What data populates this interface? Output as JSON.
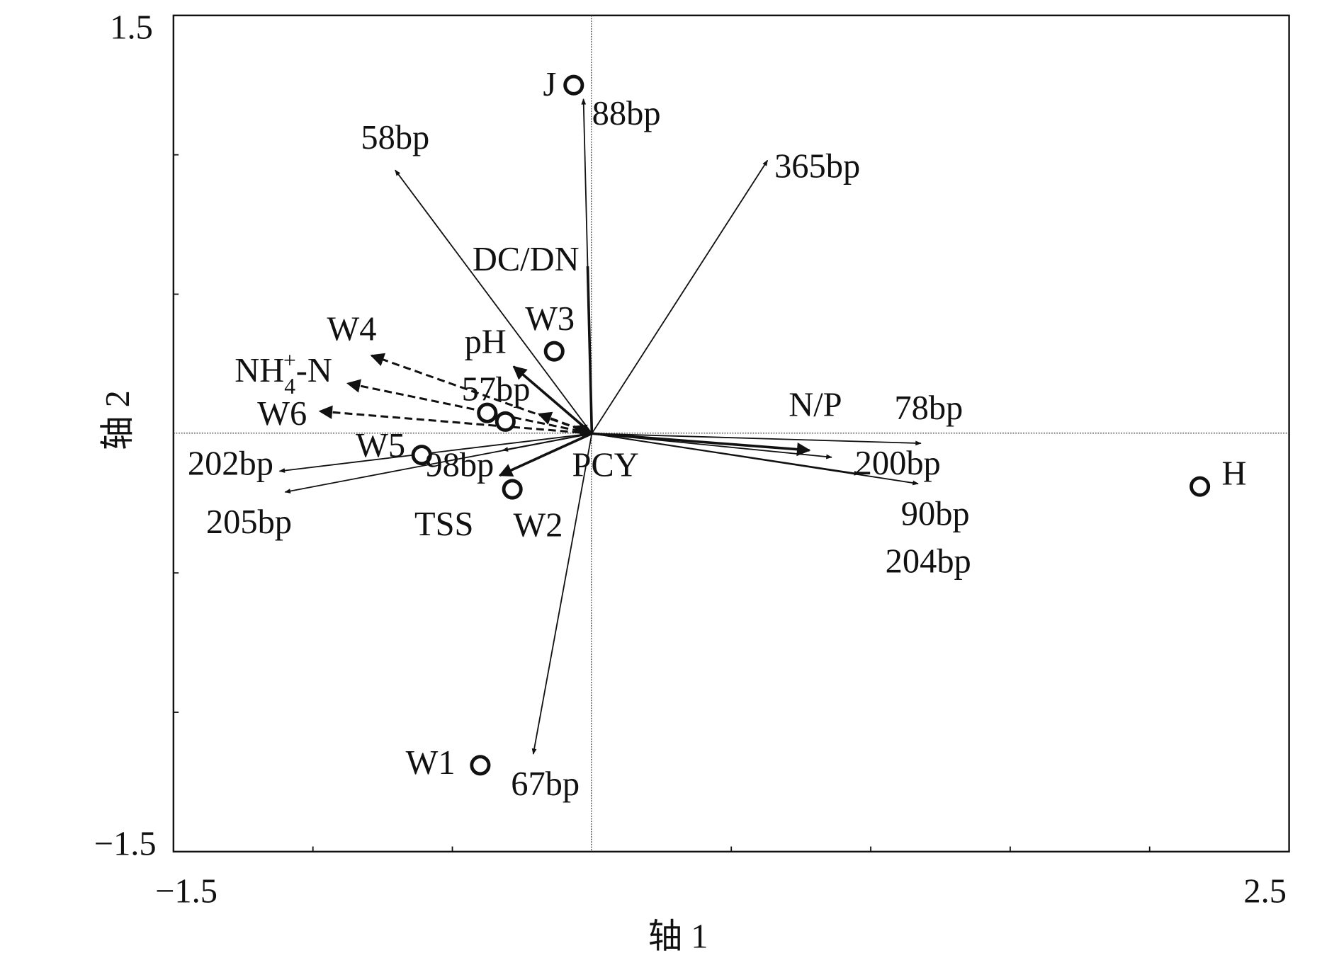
{
  "chart_data": {
    "type": "scatter",
    "title": "",
    "xlabel": "轴 1",
    "ylabel": "轴 2",
    "xlim": [
      -1.5,
      2.5
    ],
    "ylim": [
      -1.5,
      1.5
    ],
    "x_tick_labels": [
      "−1.5",
      "2.5"
    ],
    "y_tick_labels": [
      "1.5",
      "−1.5"
    ],
    "grid": false,
    "zero_lines": true,
    "sites": [
      {
        "name": "J",
        "x": -0.065,
        "y": 1.25
      },
      {
        "name": "W3",
        "x": -0.135,
        "y": 0.295
      },
      {
        "name": "",
        "x": -0.375,
        "y": 0.074
      },
      {
        "name": "",
        "x": -0.31,
        "y": 0.043
      },
      {
        "name": "W5",
        "x": -0.61,
        "y": -0.077
      },
      {
        "name": "W2",
        "x": -0.285,
        "y": -0.2
      },
      {
        "name": "W1",
        "x": -0.4,
        "y": -1.19
      },
      {
        "name": "H",
        "x": 2.18,
        "y": -0.19
      }
    ],
    "arrows": [
      {
        "name": "88bp",
        "x": -0.03,
        "y": 1.2,
        "style": "thin"
      },
      {
        "name": "58bp",
        "x": -0.705,
        "y": 0.945,
        "style": "thin"
      },
      {
        "name": "365bp",
        "x": 0.63,
        "y": 0.98,
        "style": "thin"
      },
      {
        "name": "DC/DN",
        "x": -0.015,
        "y": 0.6,
        "style": "thick-noHead"
      },
      {
        "name": "pH",
        "x": -0.28,
        "y": 0.24,
        "style": "thick"
      },
      {
        "name": "57bp",
        "x": -0.19,
        "y": 0.07,
        "style": "dashed"
      },
      {
        "name": "W4",
        "x": -0.79,
        "y": 0.28,
        "style": "dashed"
      },
      {
        "name": "NH4+-N",
        "x": -0.875,
        "y": 0.18,
        "style": "dashed"
      },
      {
        "name": "W6",
        "x": -0.975,
        "y": 0.08,
        "style": "dashed"
      },
      {
        "name": "202bp",
        "x": -1.12,
        "y": -0.135,
        "style": "thin"
      },
      {
        "name": "205bp",
        "x": -1.1,
        "y": -0.21,
        "style": "thin"
      },
      {
        "name": "98bp",
        "x": -0.32,
        "y": -0.06,
        "style": "thin"
      },
      {
        "name": "TSS",
        "x": -0.33,
        "y": -0.15,
        "style": "thick"
      },
      {
        "name": "PCY",
        "x": -0.065,
        "y": 0.025,
        "style": "thick"
      },
      {
        "name": "67bp",
        "x": -0.21,
        "y": -1.15,
        "style": "thin"
      },
      {
        "name": "N/P",
        "x": 0.78,
        "y": -0.06,
        "style": "thick"
      },
      {
        "name": "78bp",
        "x": 1.18,
        "y": -0.035,
        "style": "thin"
      },
      {
        "name": "200bp",
        "x": 0.86,
        "y": -0.085,
        "style": "thin"
      },
      {
        "name": "90bp",
        "x": 1.17,
        "y": -0.18,
        "style": "thin"
      },
      {
        "name": "204bp",
        "x": 0.96,
        "y": -0.145,
        "style": "thin"
      }
    ]
  }
}
